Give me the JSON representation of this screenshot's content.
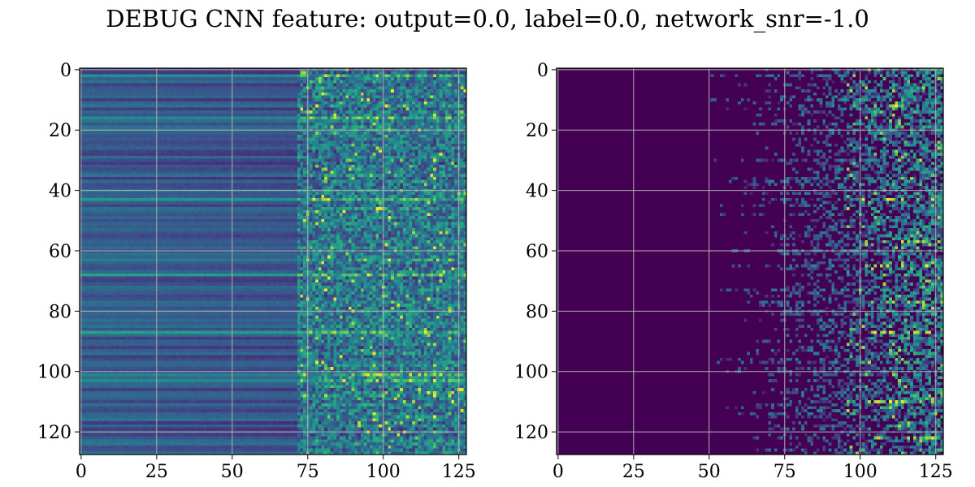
{
  "figure": {
    "title": "DEBUG CNN feature: output=0.0, label=0.0, network_snr=-1.0"
  },
  "chart_data": [
    {
      "type": "heatmap",
      "title": "",
      "xlabel": "",
      "ylabel": "",
      "xlim": [
        -0.5,
        127.5
      ],
      "ylim": [
        127.5,
        -0.5
      ],
      "grid": true,
      "colormap": "viridis",
      "x_ticks": [
        0,
        25,
        50,
        75,
        100,
        125
      ],
      "y_ticks": [
        0,
        20,
        40,
        60,
        80,
        100,
        120
      ],
      "x_tick_labels": [
        "0",
        "25",
        "50",
        "75",
        "100",
        "125"
      ],
      "y_tick_labels": [
        "0",
        "20",
        "40",
        "60",
        "80",
        "100",
        "120"
      ],
      "grid_size": [
        128,
        128
      ],
      "columns_0_to_75": "smooth horizontal bands, mid-low intensity (blue/teal), row-dependent",
      "columns_75_to_127": "noisy speckled values with occasional bright (green/yellow) spikes",
      "notable_bright_rows": [
        2,
        16,
        43,
        63,
        68,
        87,
        101,
        103
      ]
    },
    {
      "type": "heatmap",
      "title": "",
      "xlabel": "",
      "ylabel": "",
      "xlim": [
        -0.5,
        127.5
      ],
      "ylim": [
        127.5,
        -0.5
      ],
      "grid": true,
      "colormap": "viridis",
      "x_ticks": [
        0,
        25,
        50,
        75,
        100,
        125
      ],
      "y_ticks": [
        0,
        20,
        40,
        60,
        80,
        100,
        120
      ],
      "x_tick_labels": [
        "0",
        "25",
        "50",
        "75",
        "100",
        "125"
      ],
      "y_tick_labels": [
        "0",
        "20",
        "40",
        "60",
        "80",
        "100",
        "120"
      ],
      "grid_size": [
        128,
        128
      ],
      "columns_0_to_50": "near zero (dark purple)",
      "columns_50_to_127": "activations increase to the right, sparse speckles with bright spots near x 100-125",
      "notable_bright_rows": [
        12,
        43,
        57,
        65,
        77,
        87,
        110,
        122
      ]
    }
  ]
}
